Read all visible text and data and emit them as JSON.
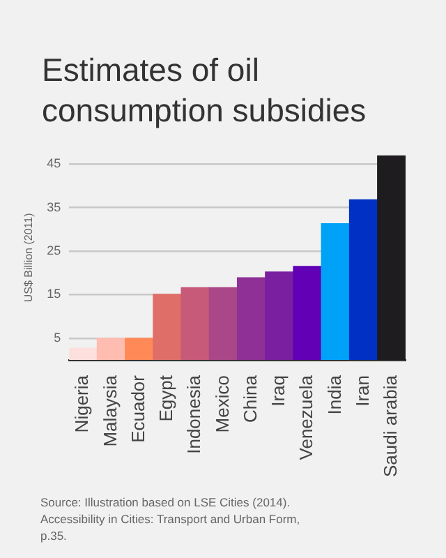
{
  "chart_data": {
    "type": "bar",
    "title": "Estimates of oil consumption subsidies",
    "ylabel": "US$ Billion (2011)",
    "categories": [
      "Nigeria",
      "Malaysia",
      "Ecuador",
      "Egypt",
      "Indonesia",
      "Mexico",
      "China",
      "Iraq",
      "Venezuela",
      "India",
      "Iran",
      "Saudi arabia"
    ],
    "values": [
      2.7,
      5,
      5,
      15.1,
      16.6,
      16.6,
      18.9,
      20.2,
      21.5,
      31.3,
      36.8,
      47
    ],
    "colors": [
      "#fde0de",
      "#ffbcb0",
      "#ff8a57",
      "#e06e68",
      "#c75a78",
      "#a94788",
      "#8e3096",
      "#7a1fa0",
      "#6200b5",
      "#00a2f8",
      "#0031c4",
      "#1e1c1e"
    ],
    "ylim": [
      0,
      47
    ],
    "yticks": [
      5,
      15,
      25,
      35,
      45
    ],
    "grid": "y",
    "annotations": [
      "Source:  Illustration based on LSE Cities (2014). Accessibility in Cities: Transport and Urban Form, p.35."
    ]
  }
}
